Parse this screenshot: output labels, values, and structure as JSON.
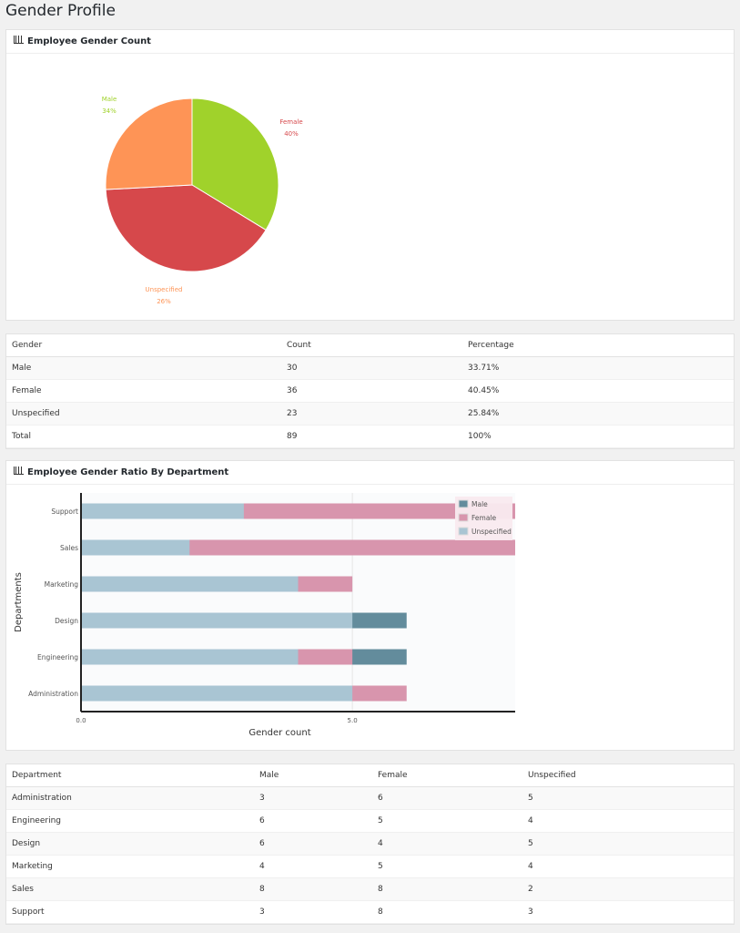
{
  "page_title": "Gender Profile",
  "pie_card": {
    "title": "Employee Gender Count",
    "icon": "bar-chart-icon"
  },
  "gender_table": {
    "headers": [
      "Gender",
      "Count",
      "Percentage"
    ],
    "rows": [
      [
        "Male",
        "30",
        "33.71%"
      ],
      [
        "Female",
        "36",
        "40.45%"
      ],
      [
        "Unspecified",
        "23",
        "25.84%"
      ],
      [
        "Total",
        "89",
        "100%"
      ]
    ]
  },
  "bar_card": {
    "title": "Employee Gender Ratio By Department",
    "icon": "bar-chart-icon"
  },
  "dept_table": {
    "headers": [
      "Department",
      "Male",
      "Female",
      "Unspecified"
    ],
    "rows": [
      [
        "Administration",
        "3",
        "6",
        "5"
      ],
      [
        "Engineering",
        "6",
        "5",
        "4"
      ],
      [
        "Design",
        "6",
        "4",
        "5"
      ],
      [
        "Marketing",
        "4",
        "5",
        "4"
      ],
      [
        "Sales",
        "8",
        "8",
        "2"
      ],
      [
        "Support",
        "3",
        "8",
        "3"
      ]
    ]
  },
  "chart_data": [
    {
      "type": "pie",
      "slices": [
        {
          "label": "Male",
          "percent_label": "34%",
          "value": 30,
          "color": "#a0d22b"
        },
        {
          "label": "Female",
          "percent_label": "40%",
          "value": 36,
          "color": "#d6484b"
        },
        {
          "label": "Unspecified",
          "percent_label": "26%",
          "value": 23,
          "color": "#fe9456"
        }
      ]
    },
    {
      "type": "bar",
      "orientation": "horizontal",
      "overlapping": true,
      "categories": [
        "Administration",
        "Engineering",
        "Design",
        "Marketing",
        "Sales",
        "Support"
      ],
      "series": [
        {
          "name": "Male",
          "values": [
            3,
            6,
            6,
            4,
            8,
            3
          ],
          "color": "#638c9c"
        },
        {
          "name": "Female",
          "values": [
            6,
            5,
            4,
            5,
            8,
            8
          ],
          "color": "#d895ad"
        },
        {
          "name": "Unspecified",
          "values": [
            5,
            4,
            5,
            4,
            2,
            3
          ],
          "color": "#a9c5d3"
        }
      ],
      "xlabel": "Gender count",
      "ylabel": "Departments",
      "xlim": [
        0,
        8
      ],
      "xticks": [
        "0.0",
        "5.0"
      ],
      "legend": "top-right",
      "grid": true
    }
  ]
}
